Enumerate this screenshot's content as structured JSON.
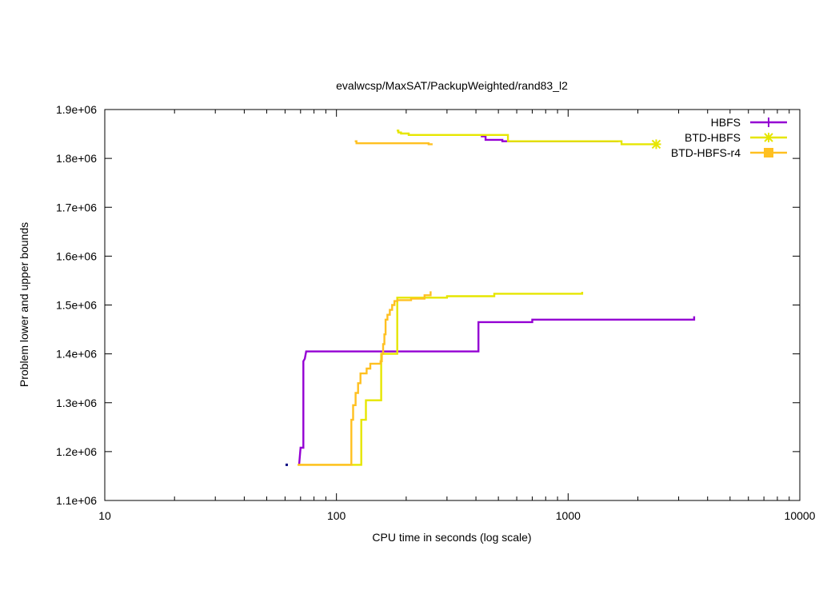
{
  "chart_data": {
    "type": "line",
    "title": "evalwcsp/MaxSAT/PackupWeighted/rand83_l2",
    "xlabel": "CPU time in seconds (log scale)",
    "ylabel": "Problem lower and upper bounds",
    "x_scale": "log",
    "xlim": [
      10,
      10000
    ],
    "ylim": [
      1100000,
      1900000
    ],
    "x_ticks": [
      {
        "value": 10,
        "label": "10"
      },
      {
        "value": 100,
        "label": "100"
      },
      {
        "value": 1000,
        "label": "1000"
      },
      {
        "value": 10000,
        "label": "10000"
      }
    ],
    "y_ticks": [
      {
        "value": 1100000,
        "label": "1.1e+06"
      },
      {
        "value": 1200000,
        "label": "1.2e+06"
      },
      {
        "value": 1300000,
        "label": "1.3e+06"
      },
      {
        "value": 1400000,
        "label": "1.4e+06"
      },
      {
        "value": 1500000,
        "label": "1.5e+06"
      },
      {
        "value": 1600000,
        "label": "1.6e+06"
      },
      {
        "value": 1700000,
        "label": "1.7e+06"
      },
      {
        "value": 1800000,
        "label": "1.8e+06"
      },
      {
        "value": 1900000,
        "label": "1.9e+06"
      }
    ],
    "grid": false,
    "legend_position": "top-right",
    "series": [
      {
        "name": "HBFS",
        "color": "#9400d3",
        "marker": "plus",
        "lower": [
          [
            69,
            1173000
          ],
          [
            70,
            1208000
          ],
          [
            72,
            1208000
          ],
          [
            72,
            1385000
          ],
          [
            73,
            1390000
          ],
          [
            74,
            1405000
          ],
          [
            410,
            1405000
          ],
          [
            410,
            1465000
          ],
          [
            700,
            1465000
          ],
          [
            700,
            1470000
          ],
          [
            3500,
            1470000
          ],
          [
            3500,
            1477000
          ]
        ],
        "upper": [
          [
            420,
            1845000
          ],
          [
            440,
            1845000
          ],
          [
            440,
            1838000
          ],
          [
            520,
            1838000
          ],
          [
            520,
            1835000
          ],
          [
            1650,
            1835000
          ]
        ]
      },
      {
        "name": "BTD-HBFS",
        "color": "#e6e600",
        "marker": "star",
        "lower": [
          [
            68,
            1173000
          ],
          [
            128,
            1173000
          ],
          [
            128,
            1265000
          ],
          [
            134,
            1265000
          ],
          [
            134,
            1305000
          ],
          [
            156,
            1305000
          ],
          [
            156,
            1400000
          ],
          [
            183,
            1400000
          ],
          [
            183,
            1515000
          ],
          [
            300,
            1515000
          ],
          [
            300,
            1518000
          ],
          [
            480,
            1518000
          ],
          [
            480,
            1523000
          ],
          [
            1150,
            1523000
          ],
          [
            1150,
            1527000
          ]
        ],
        "upper": [
          [
            182,
            1857000
          ],
          [
            185,
            1857000
          ],
          [
            185,
            1853000
          ],
          [
            190,
            1853000
          ],
          [
            190,
            1851000
          ],
          [
            205,
            1851000
          ],
          [
            205,
            1848000
          ],
          [
            550,
            1848000
          ],
          [
            550,
            1835000
          ],
          [
            1700,
            1835000
          ],
          [
            1700,
            1829000
          ],
          [
            2400,
            1829000
          ]
        ]
      },
      {
        "name": "BTD-HBFS-r4",
        "color": "#ffc020",
        "marker": "square",
        "lower": [
          [
            68,
            1173000
          ],
          [
            116,
            1173000
          ],
          [
            116,
            1265000
          ],
          [
            118,
            1265000
          ],
          [
            118,
            1295000
          ],
          [
            121,
            1295000
          ],
          [
            121,
            1320000
          ],
          [
            124,
            1320000
          ],
          [
            124,
            1340000
          ],
          [
            127,
            1340000
          ],
          [
            127,
            1360000
          ],
          [
            135,
            1360000
          ],
          [
            135,
            1370000
          ],
          [
            140,
            1370000
          ],
          [
            140,
            1380000
          ],
          [
            155,
            1380000
          ],
          [
            155,
            1385000
          ],
          [
            157,
            1385000
          ],
          [
            157,
            1400000
          ],
          [
            159,
            1400000
          ],
          [
            159,
            1420000
          ],
          [
            161,
            1420000
          ],
          [
            161,
            1440000
          ],
          [
            163,
            1440000
          ],
          [
            163,
            1470000
          ],
          [
            166,
            1470000
          ],
          [
            166,
            1480000
          ],
          [
            170,
            1480000
          ],
          [
            170,
            1490000
          ],
          [
            174,
            1490000
          ],
          [
            174,
            1500000
          ],
          [
            178,
            1500000
          ],
          [
            178,
            1508000
          ],
          [
            183,
            1508000
          ],
          [
            183,
            1510000
          ],
          [
            210,
            1510000
          ],
          [
            210,
            1513000
          ],
          [
            240,
            1513000
          ],
          [
            240,
            1520000
          ],
          [
            255,
            1520000
          ],
          [
            255,
            1528000
          ]
        ],
        "upper": [
          [
            120,
            1835000
          ],
          [
            122,
            1835000
          ],
          [
            122,
            1831000
          ],
          [
            250,
            1831000
          ],
          [
            250,
            1829000
          ],
          [
            260,
            1829000
          ]
        ]
      }
    ],
    "extra_points": [
      {
        "x": 61,
        "y": 1173000,
        "color": "#000080"
      }
    ]
  }
}
